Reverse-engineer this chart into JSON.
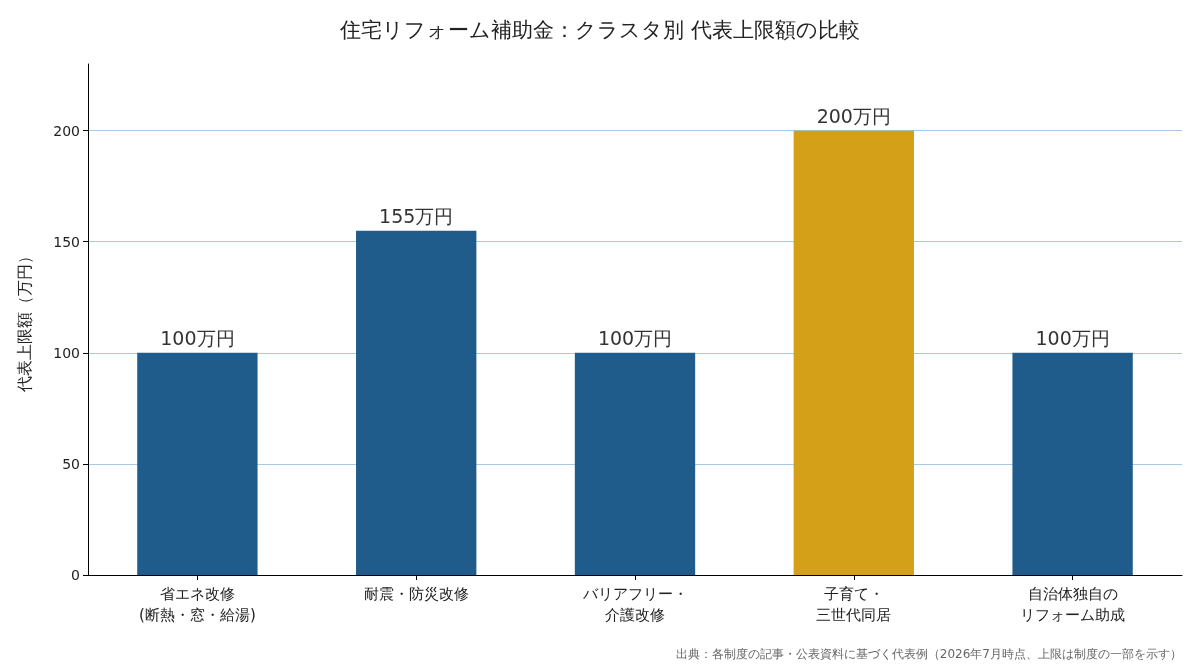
{
  "chart_data": {
    "type": "bar",
    "title": "住宅リフォーム補助金：クラスタ別 代表上限額の比較",
    "ylabel": "代表上限額（万円）",
    "categories": [
      "省エネ改修(断熱・窓・給湯)",
      "耐震・防災改修",
      "バリアフリー・介護改修",
      "子育て・三世代同居",
      "自治体独自のリフォーム助成"
    ],
    "values": [
      100,
      155,
      100,
      200,
      100
    ],
    "colors": [
      "#1f5c8c",
      "#1f5c8c",
      "#1f5c8c",
      "#d4a017",
      "#1f5c8c"
    ],
    "value_labels": [
      "100万円",
      "155万円",
      "100万円",
      "200万円",
      "100万円"
    ],
    "ylim": [
      0,
      230
    ],
    "yticks": [
      0,
      50,
      100,
      150,
      200
    ],
    "grid": "y",
    "annotations": [
      "出典：各制度の記事・公表資料に基づく代表例（2026年7月時点、上限は制度の一部を示す）"
    ]
  }
}
